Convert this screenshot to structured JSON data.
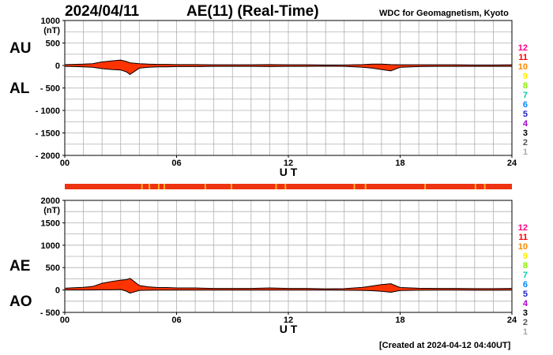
{
  "header": {
    "date": "2024/04/11",
    "title": "AE(11) (Real-Time)",
    "institution": "WDC for Geomagnetism, Kyoto"
  },
  "footer": {
    "created": "[Created at 2024-04-12 04:40UT]"
  },
  "colors": {
    "fill": "#ff3300",
    "outline": "#000000",
    "grid": "#b0b0b0",
    "station_bar": "#ee3311",
    "station_marks": "#ffaa22"
  },
  "station_scale": {
    "labels": [
      "12",
      "11",
      "10",
      "9",
      "8",
      "7",
      "6",
      "5",
      "4",
      "3",
      "2",
      "1"
    ],
    "colors": [
      "#ff0088",
      "#ff0000",
      "#ff8800",
      "#ffee00",
      "#88ee00",
      "#00ccaa",
      "#0088ff",
      "#2222cc",
      "#aa00cc",
      "#000000",
      "#555555",
      "#aaaaaa"
    ]
  },
  "chart_data": [
    {
      "type": "area",
      "panel": "AU-AL",
      "labels": {
        "upper": "AU",
        "lower": "AL"
      },
      "unit": "(nT)",
      "xlabel": "U T",
      "xlim": [
        0,
        24
      ],
      "xticks": [
        "00",
        "06",
        "12",
        "18",
        "24"
      ],
      "ylim": [
        -2000,
        1000
      ],
      "yticks": [
        "1000",
        "500",
        "0",
        "- 500",
        "- 1000",
        "- 1500",
        "- 2000"
      ],
      "x": [
        0,
        0.5,
        1,
        1.5,
        2,
        2.5,
        3,
        3.3,
        3.5,
        4,
        4.5,
        5,
        5.5,
        6,
        7,
        8,
        9,
        10,
        11,
        12,
        13,
        14,
        15,
        16,
        16.5,
        17,
        17.5,
        18,
        19,
        20,
        21,
        22,
        23,
        24
      ],
      "series": [
        {
          "name": "AU",
          "values": [
            20,
            25,
            30,
            40,
            80,
            100,
            120,
            90,
            60,
            40,
            30,
            25,
            25,
            20,
            20,
            15,
            15,
            15,
            20,
            15,
            15,
            10,
            10,
            20,
            30,
            30,
            20,
            15,
            15,
            15,
            15,
            10,
            10,
            15
          ]
        },
        {
          "name": "AL",
          "values": [
            -20,
            -25,
            -30,
            -40,
            -70,
            -90,
            -100,
            -140,
            -200,
            -60,
            -40,
            -30,
            -30,
            -25,
            -25,
            -20,
            -20,
            -20,
            -25,
            -20,
            -20,
            -15,
            -20,
            -40,
            -60,
            -90,
            -120,
            -40,
            -25,
            -20,
            -20,
            -20,
            -20,
            -20
          ]
        }
      ]
    },
    {
      "type": "area",
      "panel": "AE-AO",
      "labels": {
        "upper": "AE",
        "lower": "AO"
      },
      "unit": "(nT)",
      "xlabel": "U T",
      "xlim": [
        0,
        24
      ],
      "xticks": [
        "00",
        "06",
        "12",
        "18",
        "24"
      ],
      "ylim": [
        -500,
        2000
      ],
      "yticks": [
        "2000",
        "1500",
        "1000",
        "500",
        "0",
        "- 500"
      ],
      "x": [
        0,
        0.5,
        1,
        1.5,
        2,
        2.5,
        3,
        3.3,
        3.5,
        4,
        4.5,
        5,
        5.5,
        6,
        7,
        8,
        9,
        10,
        11,
        12,
        13,
        14,
        15,
        16,
        16.5,
        17,
        17.5,
        18,
        19,
        20,
        21,
        22,
        23,
        24
      ],
      "series": [
        {
          "name": "AE",
          "values": [
            40,
            50,
            60,
            80,
            150,
            190,
            220,
            230,
            260,
            100,
            70,
            55,
            55,
            45,
            45,
            35,
            35,
            35,
            45,
            35,
            35,
            25,
            30,
            60,
            90,
            120,
            140,
            55,
            40,
            35,
            35,
            30,
            30,
            35
          ]
        },
        {
          "name": "AO",
          "values": [
            0,
            0,
            0,
            0,
            5,
            5,
            10,
            -25,
            -70,
            -10,
            -5,
            -3,
            -3,
            -3,
            -3,
            -3,
            -3,
            -3,
            -3,
            -3,
            -3,
            -3,
            -5,
            -10,
            -15,
            -30,
            -50,
            -12,
            -5,
            -3,
            -3,
            -5,
            -5,
            -3
          ]
        }
      ]
    }
  ]
}
